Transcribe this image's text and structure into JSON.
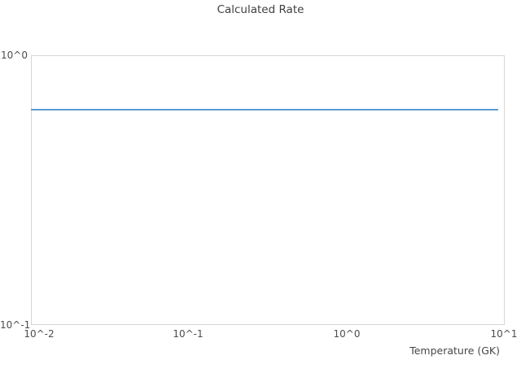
{
  "chart_data": {
    "type": "line",
    "title": "Calculated Rate",
    "xlabel": "Temperature (GK)",
    "ylabel": "",
    "x_scale": "log",
    "y_scale": "log",
    "xlim": [
      0.01,
      10
    ],
    "ylim": [
      0.1,
      1.0
    ],
    "x_tick_labels": [
      "10^-2",
      "10^-1",
      "10^0",
      "10^1"
    ],
    "y_tick_labels": [
      "10^0",
      "10^-1"
    ],
    "grid": false,
    "legend": "none",
    "axis_color": "#d6d6d6",
    "series": [
      {
        "name": "calculated rate",
        "color": "#5b9bd5",
        "x": [
          0.01,
          9.0
        ],
        "y": [
          0.63,
          0.63
        ]
      }
    ]
  }
}
